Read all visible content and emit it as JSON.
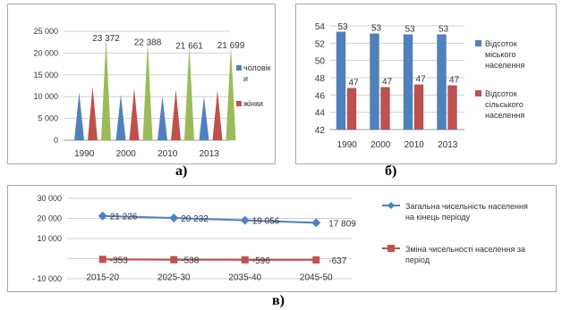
{
  "chart_data": [
    {
      "id": "a",
      "panel_letter": "а)",
      "type": "bar",
      "categories": [
        "1990",
        "2000",
        "2010",
        "2013"
      ],
      "ylim": [
        0,
        25000
      ],
      "yticks": [
        "0",
        "5 000",
        "10 000",
        "15 000",
        "20 000",
        "25 000"
      ],
      "grid": true,
      "legend_position": "right",
      "series": [
        {
          "name": "чоловіки",
          "values": [
            11000,
            10500,
            10100,
            10000
          ],
          "color": "#4f81bd"
        },
        {
          "name": "жінки",
          "values": [
            12300,
            11900,
            11600,
            11500
          ],
          "color": "#c0504d"
        },
        {
          "name": "",
          "values": [
            23372,
            22388,
            21661,
            21699
          ],
          "color": "#9bbb59"
        }
      ],
      "data_labels": [
        "23 372",
        "22 388",
        "21 661",
        "21 699"
      ]
    },
    {
      "id": "b",
      "panel_letter": "б)",
      "type": "bar",
      "categories": [
        "1990",
        "2000",
        "2010",
        "2013"
      ],
      "ylim": [
        42,
        54
      ],
      "yticks": [
        "42",
        "44",
        "46",
        "48",
        "50",
        "52",
        "54"
      ],
      "grid": true,
      "legend_position": "right",
      "series": [
        {
          "name": "Відсоток міського населення",
          "values": [
            53.3,
            53.1,
            53.0,
            53.0
          ],
          "labels": [
            "53",
            "53",
            "53",
            "53"
          ],
          "color": "#4f81bd"
        },
        {
          "name": "Відсоток сільського населення",
          "values": [
            46.8,
            46.9,
            47.2,
            47.1
          ],
          "labels": [
            "47",
            "47",
            "47",
            "47"
          ],
          "color": "#c0504d"
        }
      ]
    },
    {
      "id": "c",
      "panel_letter": "в)",
      "type": "line",
      "categories": [
        "2015-20",
        "2025-30",
        "2035-40",
        "2045-50"
      ],
      "ylim": [
        -10000,
        30000
      ],
      "yticks": [
        "- 10 000",
        "",
        "10 000",
        "20 000",
        "30 000"
      ],
      "grid": true,
      "legend_position": "right",
      "series": [
        {
          "name": "Загальна чисельність населення на кінець періоду",
          "values": [
            21226,
            20232,
            19056,
            17809
          ],
          "labels": [
            "21 226",
            "20 232",
            "19 056",
            "17 809"
          ],
          "color": "#4f81bd"
        },
        {
          "name": "Зміна чисельності населення за період",
          "values": [
            -353,
            -538,
            -596,
            -637
          ],
          "labels": [
            "-353",
            "-538",
            "-596",
            "-637"
          ],
          "color": "#c0504d"
        }
      ]
    }
  ]
}
